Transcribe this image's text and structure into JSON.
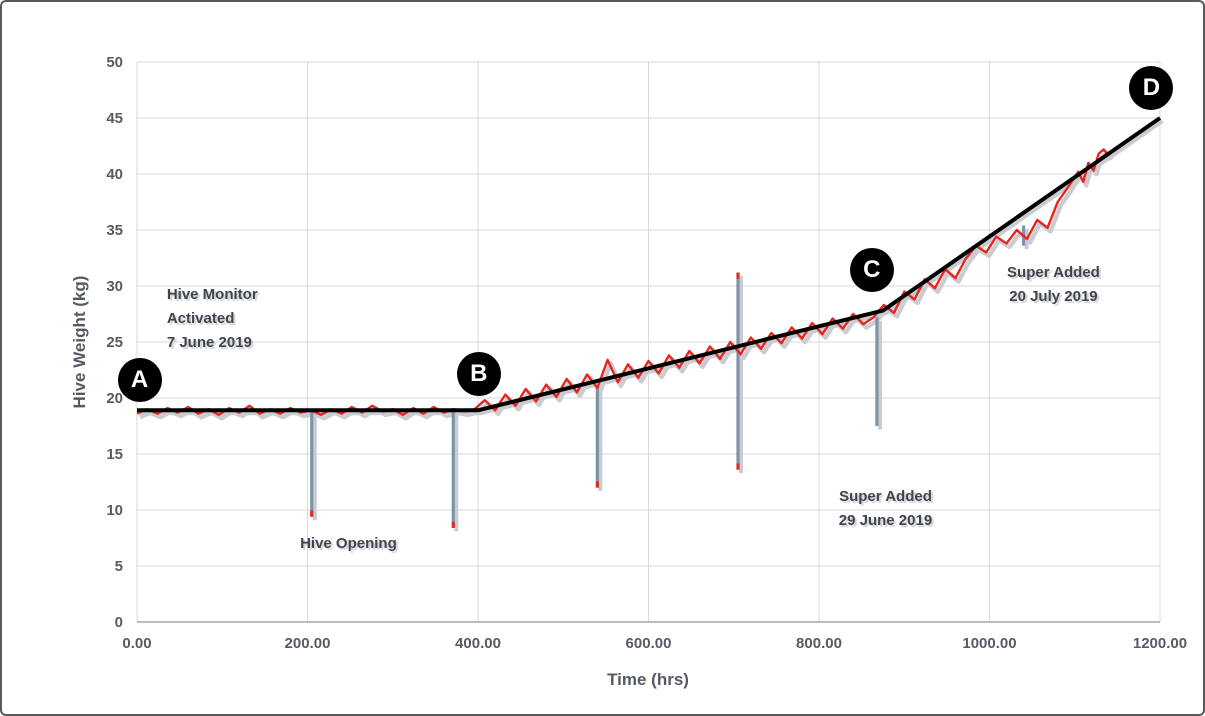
{
  "chart_data": {
    "type": "line",
    "title": "",
    "xlabel": "Time (hrs)",
    "ylabel": "Hive Weight (kg)",
    "xlim": [
      0,
      1200
    ],
    "ylim": [
      0,
      50
    ],
    "x_ticks": [
      0,
      200,
      400,
      600,
      800,
      1000,
      1200
    ],
    "x_tick_labels": [
      "0.00",
      "200.00",
      "400.00",
      "600.00",
      "800.00",
      "1000.00",
      "1200.00"
    ],
    "y_ticks": [
      0,
      5,
      10,
      15,
      20,
      25,
      30,
      35,
      40,
      45,
      50
    ],
    "y_tick_labels": [
      "0",
      "5",
      "10",
      "15",
      "20",
      "25",
      "30",
      "35",
      "40",
      "45",
      "50"
    ],
    "grid": true,
    "legend": "none",
    "colors": {
      "raw_line": "#e8251f",
      "trend_line": "#000000",
      "event_spike": "#7f93a6",
      "shadow": "#c9cdd2",
      "grid": "#d9d9d9",
      "axis_line": "#a6a6a6",
      "axis_text": "#565b63",
      "marker_bg": "#000000",
      "marker_text": "#ffffff"
    },
    "series": [
      {
        "name": "hive-weight-raw",
        "type": "line",
        "points": [
          [
            0,
            18.6
          ],
          [
            12,
            19.0
          ],
          [
            24,
            18.6
          ],
          [
            36,
            19.1
          ],
          [
            48,
            18.7
          ],
          [
            60,
            19.2
          ],
          [
            72,
            18.6
          ],
          [
            84,
            19.0
          ],
          [
            96,
            18.5
          ],
          [
            108,
            19.1
          ],
          [
            120,
            18.7
          ],
          [
            132,
            19.3
          ],
          [
            144,
            18.6
          ],
          [
            156,
            19.0
          ],
          [
            168,
            18.6
          ],
          [
            180,
            19.1
          ],
          [
            192,
            18.7
          ],
          [
            204,
            18.9
          ],
          [
            216,
            18.5
          ],
          [
            228,
            19.0
          ],
          [
            240,
            18.6
          ],
          [
            252,
            19.2
          ],
          [
            264,
            18.7
          ],
          [
            276,
            19.3
          ],
          [
            288,
            18.8
          ],
          [
            300,
            19.0
          ],
          [
            312,
            18.5
          ],
          [
            324,
            19.1
          ],
          [
            336,
            18.6
          ],
          [
            348,
            19.2
          ],
          [
            360,
            18.7
          ],
          [
            372,
            19.0
          ],
          [
            384,
            18.8
          ],
          [
            396,
            19.0
          ],
          [
            408,
            19.8
          ],
          [
            420,
            18.9
          ],
          [
            432,
            20.3
          ],
          [
            444,
            19.3
          ],
          [
            456,
            20.8
          ],
          [
            468,
            19.7
          ],
          [
            480,
            21.2
          ],
          [
            492,
            20.1
          ],
          [
            504,
            21.7
          ],
          [
            516,
            20.5
          ],
          [
            528,
            22.1
          ],
          [
            540,
            20.9
          ],
          [
            552,
            23.4
          ],
          [
            564,
            21.4
          ],
          [
            576,
            23.0
          ],
          [
            588,
            21.8
          ],
          [
            600,
            23.3
          ],
          [
            612,
            22.2
          ],
          [
            624,
            23.8
          ],
          [
            636,
            22.7
          ],
          [
            648,
            24.2
          ],
          [
            660,
            23.1
          ],
          [
            672,
            24.6
          ],
          [
            684,
            23.5
          ],
          [
            696,
            25.0
          ],
          [
            708,
            23.9
          ],
          [
            720,
            25.4
          ],
          [
            732,
            24.4
          ],
          [
            744,
            25.8
          ],
          [
            756,
            24.9
          ],
          [
            768,
            26.3
          ],
          [
            780,
            25.3
          ],
          [
            792,
            26.7
          ],
          [
            804,
            25.7
          ],
          [
            816,
            27.1
          ],
          [
            828,
            26.2
          ],
          [
            840,
            27.5
          ],
          [
            852,
            26.6
          ],
          [
            864,
            27.2
          ],
          [
            876,
            28.3
          ],
          [
            888,
            27.6
          ],
          [
            900,
            29.5
          ],
          [
            912,
            28.8
          ],
          [
            924,
            30.6
          ],
          [
            936,
            29.8
          ],
          [
            948,
            31.5
          ],
          [
            960,
            30.7
          ],
          [
            972,
            32.4
          ],
          [
            984,
            33.6
          ],
          [
            996,
            33.0
          ],
          [
            1008,
            34.4
          ],
          [
            1020,
            33.8
          ],
          [
            1032,
            35.0
          ],
          [
            1044,
            34.2
          ],
          [
            1056,
            35.9
          ],
          [
            1068,
            35.2
          ],
          [
            1080,
            37.5
          ],
          [
            1092,
            38.8
          ],
          [
            1104,
            40.2
          ],
          [
            1110,
            39.3
          ],
          [
            1116,
            41.0
          ],
          [
            1122,
            40.3
          ],
          [
            1128,
            41.8
          ],
          [
            1134,
            42.2
          ],
          [
            1140,
            41.6
          ]
        ]
      },
      {
        "name": "trend-segments",
        "type": "line",
        "points": [
          [
            0,
            18.9
          ],
          [
            400,
            18.9
          ],
          [
            875,
            27.8
          ],
          [
            1200,
            45.0
          ]
        ]
      }
    ],
    "event_spikes": [
      {
        "x": 205,
        "y_top": 18.8,
        "y_bottom": 9.4,
        "red_tips": [
          "bottom"
        ]
      },
      {
        "x": 371,
        "y_top": 18.8,
        "y_bottom": 8.4,
        "red_tips": [
          "bottom"
        ]
      },
      {
        "x": 540,
        "y_top": 21.0,
        "y_bottom": 12.0,
        "red_tips": [
          "bottom"
        ]
      },
      {
        "x": 705,
        "y_top": 31.2,
        "y_bottom": 13.6,
        "red_tips": [
          "top",
          "bottom"
        ]
      },
      {
        "x": 868,
        "y_top": 27.2,
        "y_bottom": 17.5,
        "red_tips": []
      },
      {
        "x": 1040,
        "y_top": 35.4,
        "y_bottom": 33.6,
        "red_tips": []
      }
    ],
    "markers": [
      {
        "label": "A",
        "x": 3,
        "y": 21.6
      },
      {
        "label": "B",
        "x": 401,
        "y": 22.1
      },
      {
        "label": "C",
        "x": 862,
        "y": 31.4
      },
      {
        "label": "D",
        "x": 1190,
        "y": 47.7
      }
    ],
    "annotations": [
      {
        "name": "hive-monitor-activated",
        "text": "Hive Monitor\nActivated\n7 June 2019",
        "x": 35,
        "y": 30.3,
        "align": "left"
      },
      {
        "name": "hive-opening",
        "text": "Hive Opening",
        "x": 248,
        "y": 8.0,
        "align": "center"
      },
      {
        "name": "super-added-june",
        "text": "Super Added\n29 June 2019",
        "x": 878,
        "y": 12.2,
        "align": "center"
      },
      {
        "name": "super-added-july",
        "text": "Super Added\n20 July 2019",
        "x": 1075,
        "y": 32.2,
        "align": "center"
      }
    ]
  }
}
